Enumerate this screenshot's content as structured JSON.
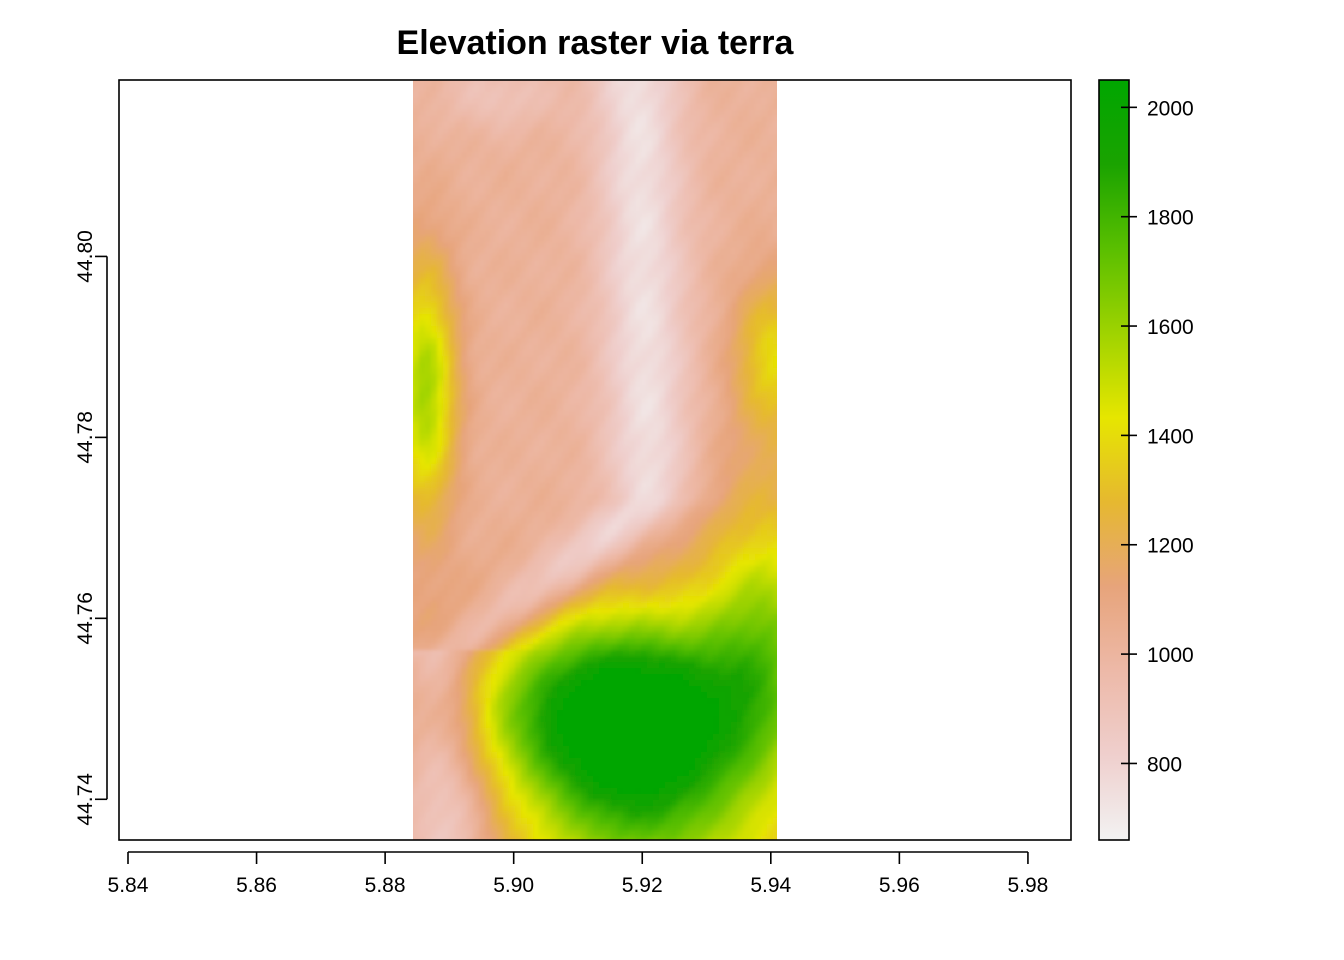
{
  "chart_data": {
    "type": "heatmap",
    "title": "Elevation raster via terra",
    "xlabel": "",
    "ylabel": "",
    "xlim": [
      5.8386,
      5.9867
    ],
    "ylim": [
      44.7355,
      44.8195
    ],
    "x_ticks": [
      5.84,
      5.86,
      5.88,
      5.9,
      5.92,
      5.94,
      5.96,
      5.98
    ],
    "x_tick_labels": [
      "5.84",
      "5.86",
      "5.88",
      "5.90",
      "5.92",
      "5.94",
      "5.96",
      "5.98"
    ],
    "y_ticks": [
      44.74,
      44.76,
      44.78,
      44.8
    ],
    "y_tick_labels": [
      "44.74",
      "44.76",
      "44.78",
      "44.80"
    ],
    "raster_extent": {
      "xmin": 5.884,
      "xmax": 5.9407,
      "ymin": 44.7355,
      "ymax": 44.8195
    },
    "legend": {
      "position": "right",
      "min": 660,
      "max": 2050,
      "ticks": [
        800,
        1000,
        1200,
        1400,
        1600,
        1800,
        2000
      ],
      "tick_labels": [
        "800",
        "1000",
        "1200",
        "1400",
        "1600",
        "1800",
        "2000"
      ],
      "palette": [
        "#F2F2F2",
        "#EFCFCD",
        "#EDB9A8",
        "#E7A47B",
        "#E6B830",
        "#E6E600",
        "#9FD300",
        "#5ABF00",
        "#1AA300",
        "#00A600"
      ]
    },
    "grid": false
  }
}
